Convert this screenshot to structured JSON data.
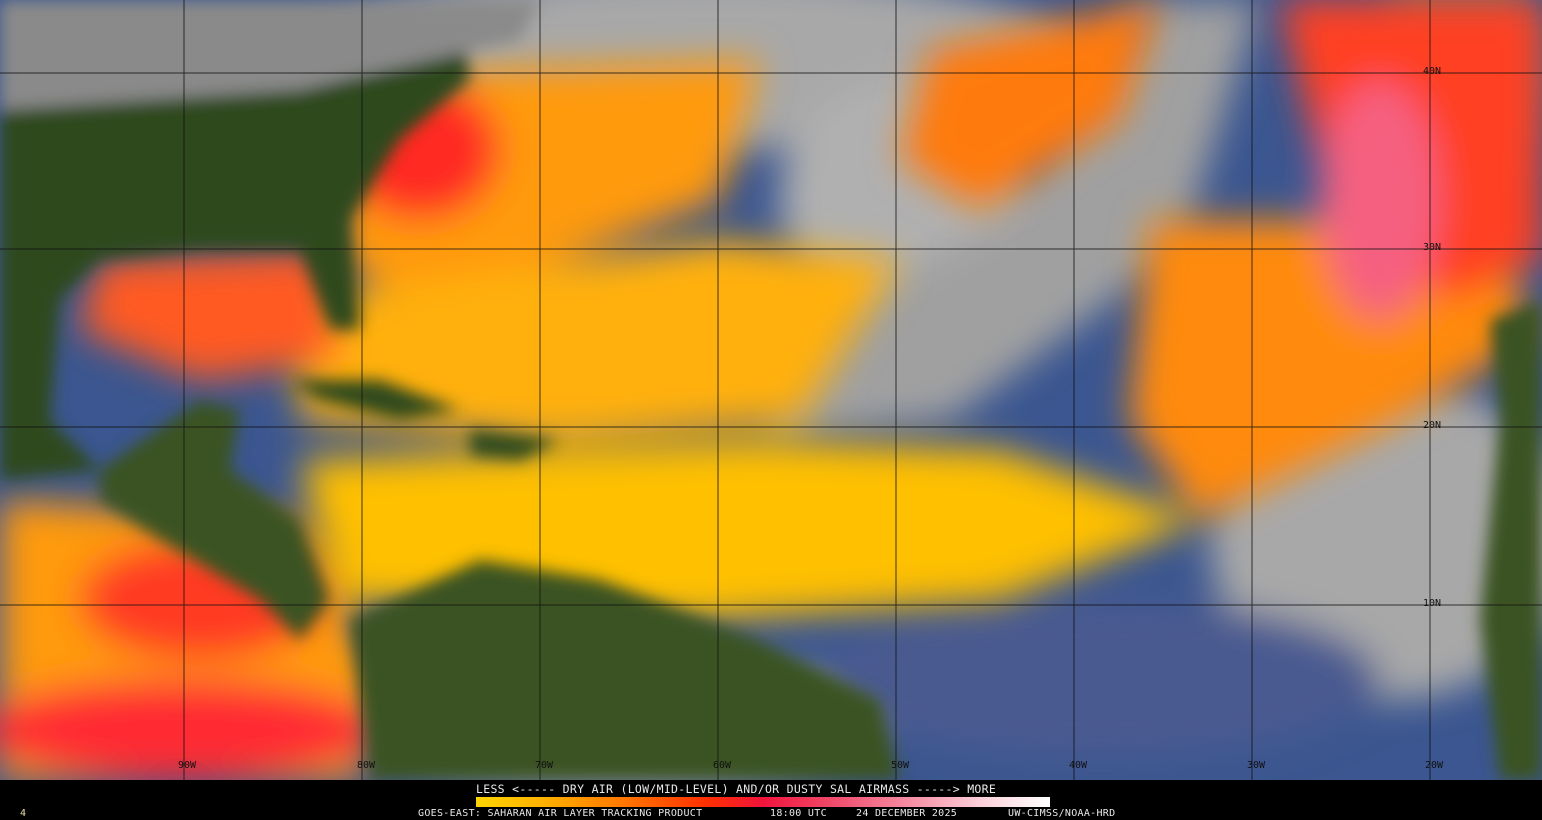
{
  "product": {
    "legend_title": "LESS <----- DRY AIR (LOW/MID-LEVEL) AND/OR DUSTY SAL AIRMASS -----> MORE",
    "footer_left": "GOES-EAST: SAHARAN AIR LAYER TRACKING PRODUCT",
    "time": "18:00 UTC",
    "date": "24 DECEMBER 2025",
    "credit": "UW-CIMSS/NOAA-HRD",
    "frame_number": "4"
  },
  "colorbar": {
    "low_label": "LESS",
    "high_label": "MORE",
    "colors": [
      "#ffd400",
      "#ffb000",
      "#ff7a00",
      "#ff3000",
      "#f0143c",
      "#f04a6a",
      "#f58aa0",
      "#fbd0da",
      "#ffffff"
    ]
  },
  "grid": {
    "latitudes": [
      "40N",
      "30N",
      "20N",
      "10N"
    ],
    "longitudes": [
      "90W",
      "80W",
      "70W",
      "60W",
      "50W",
      "40W",
      "30W",
      "20W"
    ]
  },
  "colors": {
    "land": "#2f4a1a",
    "ocean_clear": "#3b5690",
    "cloud": "#b8b8b8",
    "sal_yellow": "#ffd800",
    "sal_orange": "#ff8c00",
    "sal_red": "#ff2a1a"
  }
}
